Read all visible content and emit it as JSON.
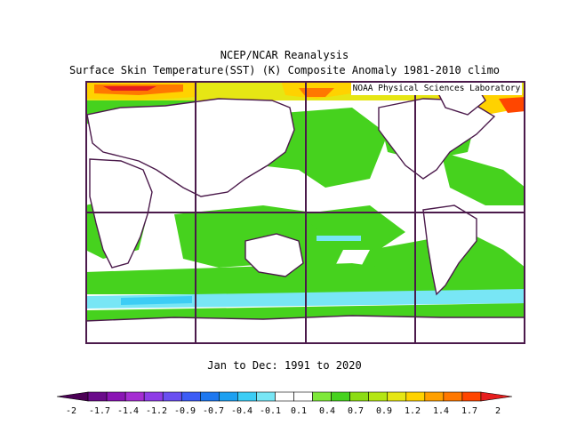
{
  "header": {
    "line1": "NCEP/NCAR Reanalysis",
    "line2": "Surface Skin Temperature(SST) (K) Composite Anomaly 1981-2010 climo"
  },
  "map": {
    "credit": "NOAA Physical Sciences Laboratory",
    "projection": "cylindrical equidistant, 0E to 360E, 90N to 90S",
    "grid_lines": true
  },
  "footer": {
    "period": "Jan to Dec: 1991 to 2020"
  },
  "colorbar": {
    "ticks": [
      "-2",
      "-1.7",
      "-1.4",
      "-1.2",
      "-0.9",
      "-0.7",
      "-0.4",
      "-0.1",
      "0.1",
      "0.4",
      "0.7",
      "0.9",
      "1.2",
      "1.4",
      "1.7",
      "2"
    ],
    "colors": [
      "#4b0055",
      "#6a0a8a",
      "#8a14b4",
      "#a52dd2",
      "#8e3ce6",
      "#6a4ff0",
      "#3c5cf5",
      "#1e78f0",
      "#1ea0f0",
      "#3ccdf5",
      "#78e6f5",
      "#ffffff",
      "#ffffff",
      "#7ee83a",
      "#46d21e",
      "#8cdc14",
      "#b4e614",
      "#e6e614",
      "#ffd200",
      "#ffa000",
      "#ff7800",
      "#ff4600",
      "#e61e1e"
    ],
    "units": "K"
  },
  "colors": {
    "frame": "#4b1a4b",
    "coast": "#4b1a4b",
    "green": "#46d21e",
    "cyan": "#78e6f5",
    "yellow": "#e6e614",
    "orange": "#ff9600",
    "red": "#e61e1e"
  }
}
